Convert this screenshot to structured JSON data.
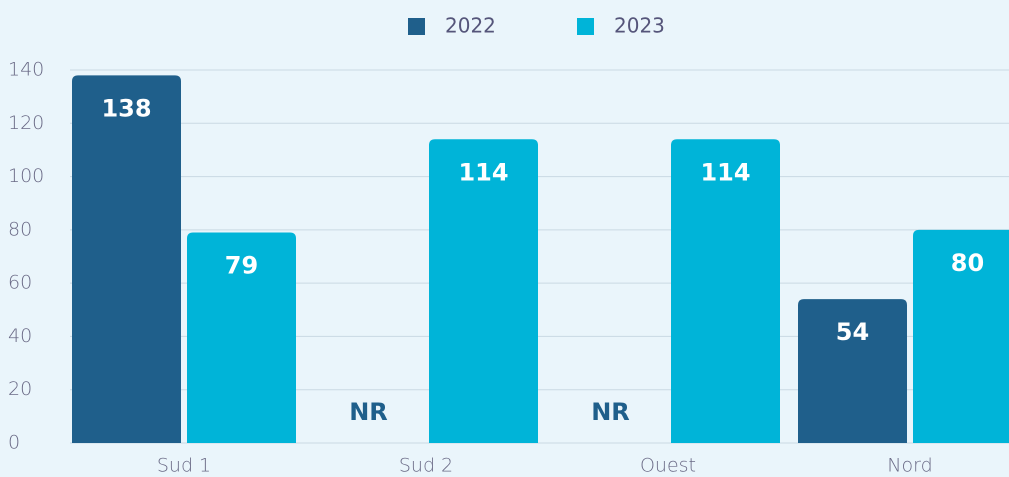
{
  "chart_data": {
    "type": "bar",
    "categories": [
      "Sud 1",
      "Sud 2",
      "Ouest",
      "Nord"
    ],
    "series": [
      {
        "name": "2022",
        "color": "#1f5f8b",
        "values": [
          138,
          null,
          null,
          54
        ],
        "value_labels": [
          "138",
          "NR",
          "NR",
          "54"
        ]
      },
      {
        "name": "2023",
        "color": "#00b4d8",
        "values": [
          79,
          114,
          114,
          80
        ]
      }
    ],
    "ylim": [
      0,
      140
    ],
    "yticks": [
      0,
      20,
      40,
      60,
      80,
      100,
      120,
      140
    ],
    "grid": true,
    "legend": "top"
  }
}
